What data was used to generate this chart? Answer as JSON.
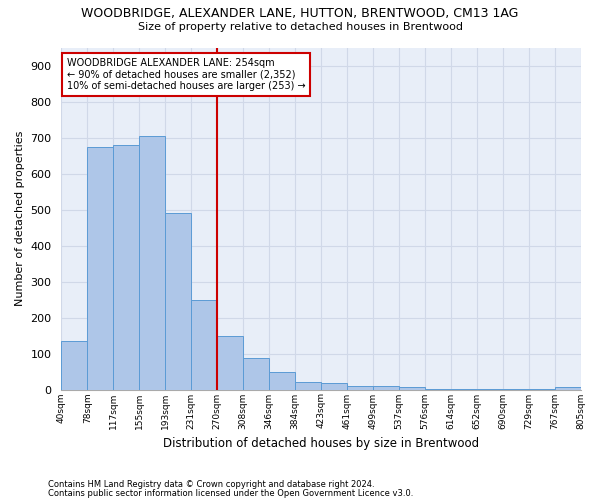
{
  "title1": "WOODBRIDGE, ALEXANDER LANE, HUTTON, BRENTWOOD, CM13 1AG",
  "title2": "Size of property relative to detached houses in Brentwood",
  "xlabel": "Distribution of detached houses by size in Brentwood",
  "ylabel": "Number of detached properties",
  "bar_values": [
    135,
    675,
    680,
    705,
    490,
    250,
    150,
    88,
    50,
    22,
    18,
    11,
    9,
    7,
    2,
    2,
    2,
    2,
    2,
    8
  ],
  "bin_labels": [
    "40sqm",
    "78sqm",
    "117sqm",
    "155sqm",
    "193sqm",
    "231sqm",
    "270sqm",
    "308sqm",
    "346sqm",
    "384sqm",
    "423sqm",
    "461sqm",
    "499sqm",
    "537sqm",
    "576sqm",
    "614sqm",
    "652sqm",
    "690sqm",
    "729sqm",
    "767sqm",
    "805sqm"
  ],
  "bar_color": "#aec6e8",
  "bar_edge_color": "#5b9bd5",
  "grid_color": "#d0d8e8",
  "bg_color": "#e8eef8",
  "vline_x_bar_index": 6,
  "vline_color": "#cc0000",
  "annotation_text": "WOODBRIDGE ALEXANDER LANE: 254sqm\n← 90% of detached houses are smaller (2,352)\n10% of semi-detached houses are larger (253) →",
  "annotation_box_color": "#cc0000",
  "footnote1": "Contains HM Land Registry data © Crown copyright and database right 2024.",
  "footnote2": "Contains public sector information licensed under the Open Government Licence v3.0.",
  "ylim": [
    0,
    950
  ],
  "yticks": [
    0,
    100,
    200,
    300,
    400,
    500,
    600,
    700,
    800,
    900
  ]
}
